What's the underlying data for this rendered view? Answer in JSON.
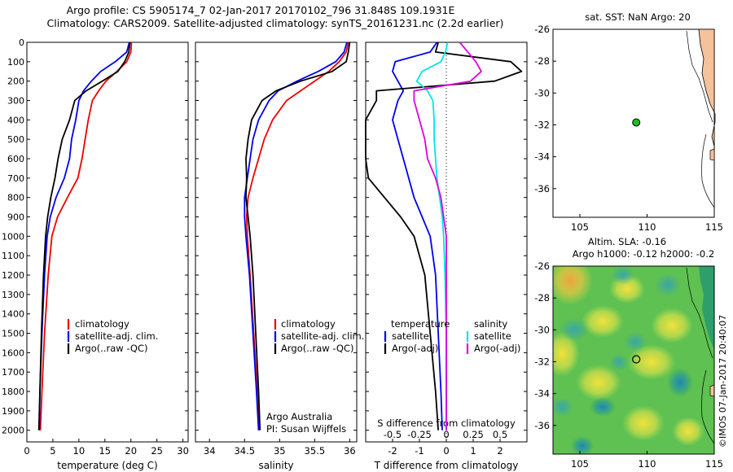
{
  "header": {
    "line1": "Argo profile: CS 5905174_7 02-Jan-2017 20170102_796 31.848S 109.1931E",
    "line2": "Climatology: CARS2009. Satellite-adjusted climatology: synTS_20161231.nc (2.2d earlier)"
  },
  "colors": {
    "climatology": "#ee0000",
    "satellite": "#0000ee",
    "argo": "#000000",
    "salinity_satellite": "#00e5e5",
    "salinity_argo": "#e000e0",
    "land": "#f5c29a"
  },
  "depth_ticks": [
    0,
    100,
    200,
    300,
    400,
    500,
    600,
    700,
    800,
    900,
    1000,
    1100,
    1200,
    1300,
    1400,
    1500,
    1600,
    1700,
    1800,
    1900,
    2000
  ],
  "legend": {
    "climatology": "climatology",
    "satellite_adj": "satellite-adj. clim.",
    "argo_raw": "Argo(..raw -QC)",
    "temperature": "temperature",
    "salinity": "salinity",
    "satellite": "satellite",
    "argo_adj": "Argo(-adj)"
  },
  "credits": {
    "line1": "Argo Australia",
    "line2": "PI: Susan Wijffels"
  },
  "map_top": {
    "title": "sat. SST: NaN Argo: 20"
  },
  "map_bottom": {
    "title1": "Altim. SLA: -0.16",
    "title2": "Argo h1000: -0.12 h2000: -0.2"
  },
  "side_label": "©IMOS 07-Jan-2017 20:40:07",
  "chart_data": [
    {
      "type": "line",
      "xlabel": "temperature (deg C)",
      "ylabel": "",
      "xlim": [
        0,
        31
      ],
      "ylim": [
        2060,
        0
      ],
      "xticks": [
        0,
        5,
        10,
        15,
        20,
        25,
        30
      ],
      "series": [
        {
          "name": "climatology",
          "color": "#ee0000",
          "x": [
            20.1,
            20.0,
            19.2,
            17.3,
            15.2,
            13.8,
            12.6,
            11.8,
            11.2,
            10.6,
            9.8,
            7.8,
            5.9,
            4.8,
            4.1,
            3.4,
            2.9,
            2.6
          ],
          "y": [
            0,
            50,
            100,
            150,
            200,
            250,
            300,
            400,
            500,
            600,
            700,
            800,
            900,
            1000,
            1200,
            1500,
            1800,
            2000
          ]
        },
        {
          "name": "satellite-adj. clim.",
          "color": "#0000ee",
          "x": [
            19.7,
            19.2,
            17.0,
            14.2,
            12.4,
            10.9,
            10.0,
            9.4,
            8.6,
            8.2,
            7.2,
            5.6,
            4.5,
            3.9,
            3.4,
            2.9,
            2.5,
            2.4
          ],
          "y": [
            0,
            50,
            100,
            150,
            200,
            250,
            300,
            400,
            500,
            600,
            700,
            800,
            900,
            1000,
            1200,
            1500,
            1800,
            2000
          ]
        },
        {
          "name": "Argo(..raw -QC)",
          "color": "#000000",
          "x": [
            19.8,
            19.6,
            18.8,
            17.5,
            14.5,
            11.4,
            9.2,
            8.2,
            6.8,
            6.0,
            5.4,
            4.6,
            4.0,
            3.6,
            3.2,
            2.8,
            2.5,
            2.3
          ],
          "y": [
            0,
            50,
            100,
            150,
            200,
            250,
            300,
            400,
            500,
            600,
            700,
            800,
            900,
            1000,
            1200,
            1500,
            1800,
            2000
          ]
        }
      ]
    },
    {
      "type": "line",
      "xlabel": "salinity",
      "ylabel": "",
      "xlim": [
        33.8,
        36.1
      ],
      "ylim": [
        2060,
        0
      ],
      "xticks": [
        34,
        34.5,
        35,
        35.5,
        36
      ],
      "series": [
        {
          "name": "climatology",
          "color": "#ee0000",
          "x": [
            35.98,
            35.95,
            35.85,
            35.7,
            35.5,
            35.3,
            35.1,
            34.9,
            34.78,
            34.7,
            34.62,
            34.55,
            34.53,
            34.54,
            34.58,
            34.63,
            34.68,
            34.71
          ],
          "y": [
            0,
            50,
            100,
            150,
            200,
            250,
            300,
            400,
            500,
            600,
            700,
            800,
            900,
            1000,
            1200,
            1500,
            1800,
            2000
          ]
        },
        {
          "name": "satellite-adj. clim.",
          "color": "#0000ee",
          "x": [
            35.96,
            35.92,
            35.8,
            35.55,
            35.25,
            34.98,
            34.85,
            34.7,
            34.62,
            34.58,
            34.54,
            34.5,
            34.5,
            34.52,
            34.57,
            34.62,
            34.67,
            34.7
          ],
          "y": [
            0,
            50,
            100,
            150,
            200,
            250,
            300,
            400,
            500,
            600,
            700,
            800,
            900,
            1000,
            1200,
            1500,
            1800,
            2000
          ]
        },
        {
          "name": "Argo(..raw -QC)",
          "color": "#000000",
          "x": [
            36.0,
            35.98,
            35.95,
            35.75,
            35.3,
            34.95,
            34.75,
            34.6,
            34.55,
            34.52,
            34.53,
            34.52,
            34.55,
            34.58,
            34.62,
            34.66,
            34.7,
            34.72
          ],
          "y": [
            0,
            50,
            100,
            150,
            200,
            250,
            300,
            400,
            500,
            600,
            700,
            800,
            900,
            1000,
            1200,
            1500,
            1800,
            2000
          ]
        }
      ]
    },
    {
      "type": "line",
      "xlabel": "T difference from climatology",
      "top_label": "S difference from climatology",
      "ylabel": "",
      "xlim": [
        -3,
        3
      ],
      "ylim": [
        2060,
        0
      ],
      "xticks": [
        -2,
        -1,
        0,
        1,
        2
      ],
      "top_ticks": [
        "-0.5",
        "-0.25",
        "0",
        "0.25",
        "0.5"
      ],
      "series": [
        {
          "name": "temperature satellite",
          "color": "#0000ee",
          "x": [
            -0.35,
            -0.6,
            -1.9,
            -2.0,
            -1.8,
            -1.6,
            -1.8,
            -2.0,
            -1.8,
            -1.6,
            -1.4,
            -1.2,
            -0.9,
            -0.6,
            -0.4,
            -0.3,
            -0.2,
            -0.15
          ],
          "y": [
            0,
            50,
            100,
            150,
            200,
            250,
            300,
            400,
            500,
            600,
            700,
            800,
            900,
            1000,
            1200,
            1500,
            1800,
            2000
          ]
        },
        {
          "name": "temperature Argo(-adj)",
          "color": "#000000",
          "x": [
            -0.3,
            -0.4,
            2.4,
            2.8,
            1.8,
            -2.6,
            -2.6,
            -3.0,
            -3.0,
            -3.0,
            -2.9,
            -2.3,
            -1.7,
            -1.2,
            -0.8,
            -0.6,
            -0.4,
            -0.3
          ],
          "y": [
            0,
            50,
            100,
            150,
            200,
            250,
            300,
            400,
            500,
            600,
            700,
            800,
            900,
            1000,
            1200,
            1500,
            1800,
            2000
          ]
        },
        {
          "name": "salinity satellite",
          "color": "#00e5e5",
          "x": [
            0.05,
            -0.03,
            -0.2,
            -0.9,
            -1.1,
            -0.7,
            -0.5,
            -0.45,
            -0.45,
            -0.4,
            -0.35,
            -0.25,
            -0.15,
            -0.1,
            -0.05,
            0.0,
            0.0,
            0.0
          ],
          "y": [
            0,
            50,
            100,
            150,
            200,
            250,
            300,
            400,
            500,
            600,
            700,
            800,
            900,
            1000,
            1200,
            1500,
            1800,
            2000
          ]
        },
        {
          "name": "salinity Argo(-adj)",
          "color": "#e000e0",
          "x": [
            0.5,
            0.8,
            1.1,
            1.3,
            0.9,
            -1.2,
            -1.2,
            -1.0,
            -0.8,
            -0.7,
            -0.4,
            -0.2,
            -0.1,
            0.0,
            0.0,
            0.0,
            0.0,
            0.0
          ],
          "y": [
            0,
            50,
            100,
            150,
            200,
            250,
            300,
            400,
            500,
            600,
            700,
            800,
            900,
            1000,
            1200,
            1500,
            1800,
            2000
          ]
        }
      ]
    },
    {
      "type": "scatter",
      "title": "sat. SST: NaN Argo: 20",
      "xlim": [
        103,
        115
      ],
      "ylim": [
        -37.8,
        -26
      ],
      "xticks": [
        105,
        110,
        115
      ],
      "yticks": [
        -26,
        -28,
        -30,
        -32,
        -34,
        -36
      ],
      "points": [
        {
          "lon": 109.1931,
          "lat": -31.848,
          "marker": "argo-float"
        }
      ]
    },
    {
      "type": "heatmap",
      "title": "Altim. SLA: -0.16",
      "xlim": [
        103,
        115
      ],
      "ylim": [
        -37.8,
        -26
      ],
      "xticks": [
        105,
        110,
        115
      ],
      "yticks": [
        -26,
        -28,
        -30,
        -32,
        -34,
        -36
      ],
      "points": [
        {
          "lon": 109.1931,
          "lat": -31.848,
          "marker": "argo-float"
        }
      ]
    }
  ]
}
